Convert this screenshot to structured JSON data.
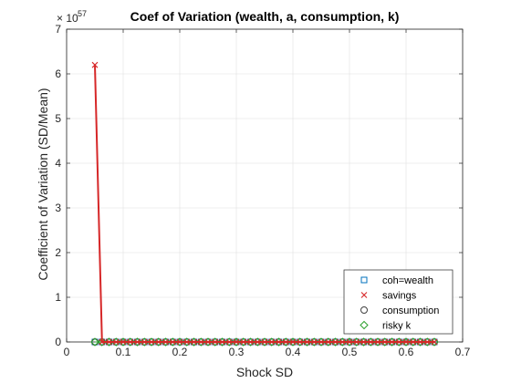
{
  "chart_data": {
    "type": "line",
    "title": "Coef of Variation (wealth, a, consumption, k)",
    "xlabel": "Shock SD",
    "ylabel": "Coefficient of Variation (SD/Mean)",
    "y_exponent_label": "× 10",
    "y_exponent": "57",
    "xlim": [
      0,
      0.7
    ],
    "ylim": [
      0,
      7
    ],
    "xticks": [
      "0",
      "0.1",
      "0.2",
      "0.3",
      "0.4",
      "0.5",
      "0.6",
      "0.7"
    ],
    "yticks": [
      "0",
      "1",
      "2",
      "3",
      "4",
      "5",
      "6",
      "7"
    ],
    "grid": true,
    "legend_position": "bottom-right",
    "x": [
      0.05,
      0.0625,
      0.075,
      0.0875,
      0.1,
      0.1125,
      0.125,
      0.1375,
      0.15,
      0.1625,
      0.175,
      0.1875,
      0.2,
      0.2125,
      0.225,
      0.2375,
      0.25,
      0.2625,
      0.275,
      0.2875,
      0.3,
      0.3125,
      0.325,
      0.3375,
      0.35,
      0.3625,
      0.375,
      0.3875,
      0.4,
      0.4125,
      0.425,
      0.4375,
      0.45,
      0.4625,
      0.475,
      0.4875,
      0.5,
      0.5125,
      0.525,
      0.5375,
      0.55,
      0.5625,
      0.575,
      0.5875,
      0.6,
      0.6125,
      0.625,
      0.6375,
      0.65
    ],
    "series": [
      {
        "name": "coh=wealth",
        "marker": "square",
        "color": "#0072BD",
        "line_color": "#0072BD",
        "values": [
          0,
          0,
          0,
          0,
          0,
          0,
          0,
          0,
          0,
          0,
          0,
          0,
          0,
          0,
          0,
          0,
          0,
          0,
          0,
          0,
          0,
          0,
          0,
          0,
          0,
          0,
          0,
          0,
          0,
          0,
          0,
          0,
          0,
          0,
          0,
          0,
          0,
          0,
          0,
          0,
          0,
          0,
          0,
          0,
          0,
          0,
          0,
          0,
          0
        ]
      },
      {
        "name": "savings",
        "marker": "x",
        "color": "#D62728",
        "line_color": "#D62728",
        "values": [
          6.2,
          0,
          0,
          0,
          0,
          0,
          0,
          0,
          0,
          0,
          0,
          0,
          0,
          0,
          0,
          0,
          0,
          0,
          0,
          0,
          0,
          0,
          0,
          0,
          0,
          0,
          0,
          0,
          0,
          0,
          0,
          0,
          0,
          0,
          0,
          0,
          0,
          0,
          0,
          0,
          0,
          0,
          0,
          0,
          0,
          0,
          0,
          0,
          0
        ]
      },
      {
        "name": "consumption",
        "marker": "circle",
        "color": "#404040",
        "line_color": "#404040",
        "values": [
          0,
          0,
          0,
          0,
          0,
          0,
          0,
          0,
          0,
          0,
          0,
          0,
          0,
          0,
          0,
          0,
          0,
          0,
          0,
          0,
          0,
          0,
          0,
          0,
          0,
          0,
          0,
          0,
          0,
          0,
          0,
          0,
          0,
          0,
          0,
          0,
          0,
          0,
          0,
          0,
          0,
          0,
          0,
          0,
          0,
          0,
          0,
          0,
          0
        ]
      },
      {
        "name": "risky k",
        "marker": "diamond",
        "color": "#2CA02C",
        "line_color": "#2CA02C",
        "values": [
          0,
          0,
          0,
          0,
          0,
          0,
          0,
          0,
          0,
          0,
          0,
          0,
          0,
          0,
          0,
          0,
          0,
          0,
          0,
          0,
          0,
          0,
          0,
          0,
          0,
          0,
          0,
          0,
          0,
          0,
          0,
          0,
          0,
          0,
          0,
          0,
          0,
          0,
          0,
          0,
          0,
          0,
          0,
          0,
          0,
          0,
          0,
          0,
          0
        ]
      }
    ]
  }
}
